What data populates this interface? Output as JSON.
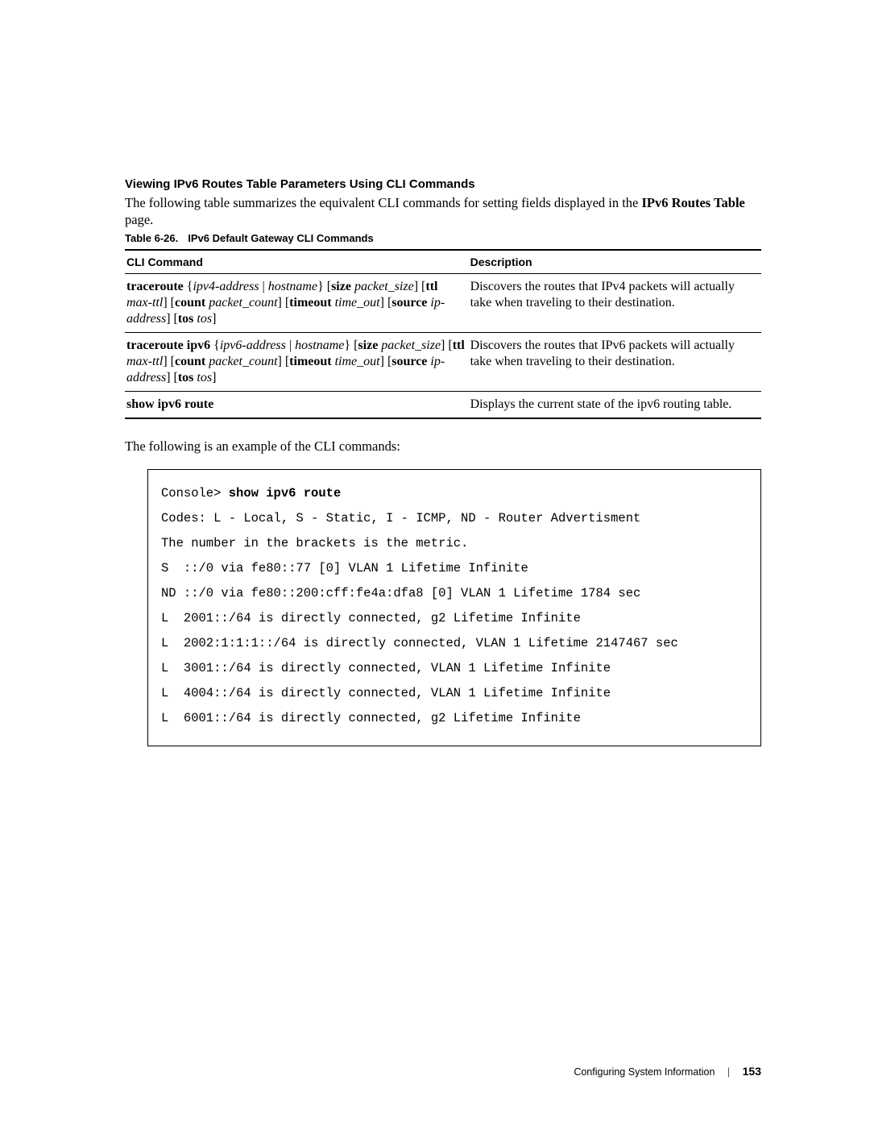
{
  "heading": "Viewing IPv6 Routes Table Parameters Using CLI Commands",
  "intro_prefix": "The following table summarizes the equivalent CLI commands for setting fields displayed in the ",
  "intro_bold": "IPv6 Routes Table",
  "intro_suffix": " page.",
  "table_caption_num": "Table 6-26.",
  "table_caption_title": "IPv6 Default Gateway CLI Commands",
  "table_headers": {
    "cmd": "CLI Command",
    "desc": "Description"
  },
  "rows": [
    {
      "cmd_html": "<b>traceroute</b> {<i>ipv4-address</i> | <i>hostname</i>} [<b>size</b> <i>packet_size</i>] [<b>ttl</b> <i>max-ttl</i>] [<b>count</b> <i>packet_count</i>] [<b>timeout</b> <i>time_out</i>] [<b>source</b> <i>ip-address</i>] [<b>tos</b> <i>tos</i>]",
      "desc": "Discovers the routes that IPv4 packets will actually take when traveling to their destination."
    },
    {
      "cmd_html": "<b>traceroute ipv6</b> {<i>ipv6-address</i> | <i>hostname</i>} [<b>size</b> <i>packet_size</i>] [<b>ttl</b> <i>max-ttl</i>] [<b>count</b> <i>packet_count</i>] [<b>timeout</b> <i>time_out</i>] [<b>source</b> <i>ip-address</i>] [<b>tos</b> <i>tos</i>]",
      "desc": "Discovers the routes that IPv6 packets will actually take when traveling to their destination."
    },
    {
      "cmd_html": "<b>show ipv6 route</b>",
      "desc": "Displays the current state of the ipv6 routing table."
    }
  ],
  "post_table_text": "The following is an example of the CLI commands:",
  "cli": {
    "prompt": "Console> ",
    "command": "show ipv6 route",
    "lines": [
      "Codes: L - Local, S - Static, I - ICMP, ND - Router Advertisment",
      "The number in the brackets is the metric.",
      "S  ::/0 via fe80::77 [0] VLAN 1 Lifetime Infinite",
      "ND ::/0 via fe80::200:cff:fe4a:dfa8 [0] VLAN 1 Lifetime 1784 sec",
      "L  2001::/64 is directly connected, g2 Lifetime Infinite",
      "L  2002:1:1:1::/64 is directly connected, VLAN 1 Lifetime 2147467 sec",
      "L  3001::/64 is directly connected, VLAN 1 Lifetime Infinite",
      "L  4004::/64 is directly connected, VLAN 1 Lifetime Infinite",
      "L  6001::/64 is directly connected, g2 Lifetime Infinite"
    ]
  },
  "footer": {
    "section": "Configuring System Information",
    "page": "153"
  }
}
